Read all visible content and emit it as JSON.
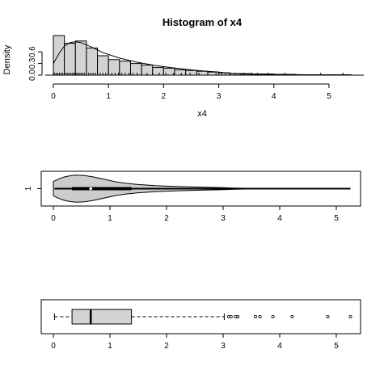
{
  "chart_data": [
    {
      "type": "bar",
      "subtype": "histogram",
      "title": "Histogram of x4",
      "xlabel": "x4",
      "ylabel": "Density",
      "xlim": [
        -0.15,
        5.65
      ],
      "ylim": [
        0,
        1.1
      ],
      "x_ticks": [
        "0",
        "1",
        "2",
        "3",
        "4",
        "5"
      ],
      "y_ticks": [
        "0.0",
        "0.3",
        "0.6"
      ],
      "bin_width": 0.2,
      "bin_starts": [
        0.0,
        0.2,
        0.4,
        0.6,
        0.8,
        1.0,
        1.2,
        1.4,
        1.6,
        1.8,
        2.0,
        2.2,
        2.4,
        2.6,
        2.8,
        3.0,
        3.2,
        3.4,
        3.6,
        3.8,
        4.0,
        4.2,
        4.4,
        4.6,
        4.8,
        5.0,
        5.2
      ],
      "density": [
        1.02,
        0.82,
        0.88,
        0.7,
        0.5,
        0.4,
        0.36,
        0.3,
        0.26,
        0.2,
        0.18,
        0.14,
        0.12,
        0.1,
        0.08,
        0.06,
        0.04,
        0.04,
        0.03,
        0.03,
        0.02,
        0.02,
        0.01,
        0.01,
        0.01,
        0.01,
        0.01
      ],
      "density_curve": {
        "x": [
          0.0,
          0.1,
          0.2,
          0.3,
          0.4,
          0.5,
          0.7,
          0.9,
          1.2,
          1.5,
          1.8,
          2.1,
          2.4,
          2.7,
          3.0,
          3.2,
          3.4,
          3.8,
          4.2,
          4.6,
          5.0,
          5.4
        ],
        "y": [
          0.3,
          0.55,
          0.75,
          0.84,
          0.86,
          0.84,
          0.72,
          0.58,
          0.44,
          0.34,
          0.26,
          0.2,
          0.15,
          0.11,
          0.08,
          0.05,
          0.03,
          0.02,
          0.015,
          0.01,
          0.008,
          0.004
        ]
      },
      "rug": [
        0.02,
        0.05,
        0.08,
        0.11,
        0.14,
        0.17,
        0.2,
        0.23,
        0.26,
        0.29,
        0.32,
        0.35,
        0.38,
        0.41,
        0.44,
        0.47,
        0.5,
        0.53,
        0.56,
        0.6,
        0.64,
        0.68,
        0.72,
        0.76,
        0.8,
        0.85,
        0.9,
        0.95,
        1.0,
        1.06,
        1.12,
        1.18,
        1.24,
        1.3,
        1.37,
        1.44,
        1.52,
        1.6,
        1.7,
        1.8,
        1.92,
        2.04,
        2.18,
        2.32,
        2.48,
        2.64,
        2.8,
        2.95,
        3.05,
        3.12,
        3.2,
        3.3,
        3.45,
        3.6,
        3.7,
        3.9,
        4.2,
        4.85,
        5.25
      ]
    },
    {
      "type": "violin",
      "y_ticks": [
        "1"
      ],
      "xlim": [
        -0.15,
        5.45
      ],
      "x_ticks": [
        "0",
        "1",
        "2",
        "3",
        "4",
        "5"
      ],
      "min": 0.02,
      "q1": 0.33,
      "median": 0.66,
      "q3": 1.38,
      "max": 5.25,
      "density_profile": {
        "x": [
          0.0,
          0.1,
          0.2,
          0.3,
          0.4,
          0.55,
          0.7,
          0.9,
          1.1,
          1.3,
          1.5,
          1.8,
          2.1,
          2.4,
          2.7,
          3.0,
          3.2,
          3.4,
          3.55,
          3.6
        ],
        "half_width": [
          0.52,
          0.72,
          0.86,
          0.94,
          0.98,
          0.96,
          0.86,
          0.68,
          0.5,
          0.38,
          0.3,
          0.22,
          0.17,
          0.13,
          0.1,
          0.07,
          0.05,
          0.03,
          0.02,
          0.0
        ]
      }
    },
    {
      "type": "boxplot",
      "xlim": [
        -0.15,
        5.45
      ],
      "x_ticks": [
        "0",
        "1",
        "2",
        "3",
        "4",
        "5"
      ],
      "whisker_low": 0.02,
      "q1": 0.33,
      "median": 0.66,
      "q3": 1.38,
      "whisker_high": 3.02,
      "outliers": [
        3.1,
        3.14,
        3.22,
        3.26,
        3.57,
        3.65,
        3.88,
        4.22,
        4.85,
        5.25
      ]
    }
  ]
}
